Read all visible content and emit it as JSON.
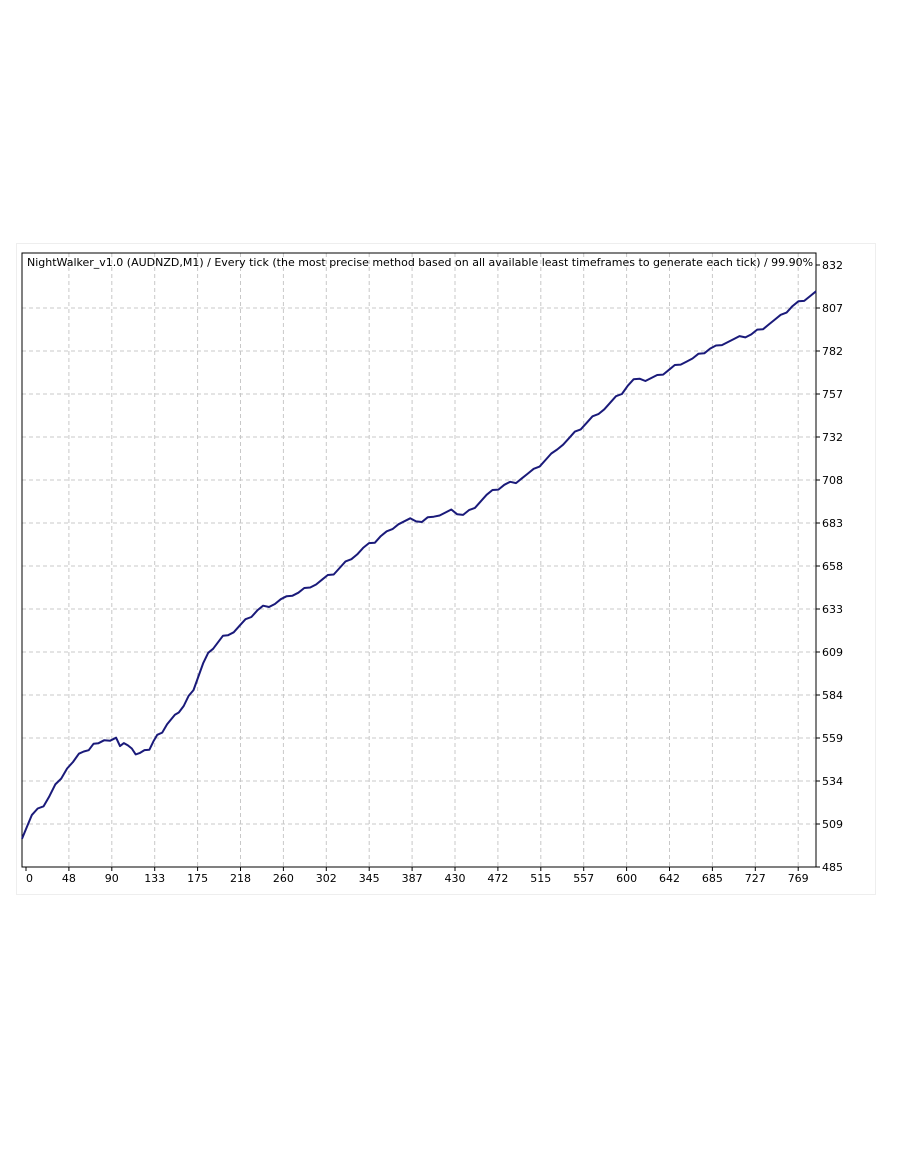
{
  "chart_data": {
    "type": "line",
    "title": "NightWalker_v1.0 (AUDNZD,M1) / Every tick (the most precise method based on all available least timeframes to generate each tick) / 99.90%",
    "xlabel": "",
    "ylabel": "",
    "x_ticks": [
      "0",
      "48",
      "90",
      "133",
      "175",
      "218",
      "260",
      "302",
      "345",
      "387",
      "430",
      "472",
      "515",
      "557",
      "600",
      "642",
      "685",
      "727",
      "769"
    ],
    "y_ticks": [
      "832",
      "807",
      "782",
      "757",
      "732",
      "708",
      "683",
      "658",
      "633",
      "609",
      "584",
      "559",
      "534",
      "509",
      "485"
    ],
    "xlim": [
      0,
      810
    ],
    "ylim": [
      485,
      832
    ],
    "grid": true,
    "series": [
      {
        "color": "#1a1a7a",
        "x": [
          0,
          5,
          10,
          16,
          22,
          28,
          34,
          40,
          46,
          52,
          58,
          63,
          68,
          73,
          78,
          84,
          90,
          96,
          100,
          104,
          108,
          112,
          116,
          120,
          125,
          130,
          134,
          138,
          143,
          148,
          152,
          156,
          160,
          165,
          170,
          175,
          180,
          185,
          190,
          195,
          200,
          205,
          210,
          216,
          222,
          228,
          234,
          240,
          246,
          252,
          258,
          264,
          270,
          276,
          282,
          288,
          294,
          300,
          306,
          312,
          318,
          324,
          330,
          336,
          342,
          348,
          354,
          360,
          366,
          372,
          378,
          384,
          390,
          396,
          402,
          408,
          414,
          420,
          426,
          432,
          438,
          444,
          450,
          456,
          462,
          468,
          474,
          480,
          486,
          492,
          498,
          504,
          510,
          516,
          522,
          528,
          534,
          540,
          546,
          552,
          558,
          564,
          570,
          576,
          582,
          588,
          594,
          600,
          606,
          612,
          618,
          624,
          630,
          636,
          642,
          648,
          654,
          660,
          666,
          672,
          678,
          684,
          690,
          696,
          702,
          708,
          714,
          720,
          726,
          732,
          738,
          744,
          750,
          756,
          762,
          768,
          774,
          780,
          786,
          792,
          798,
          804,
          810
        ],
        "y": [
          502,
          508,
          514,
          517,
          520,
          525,
          531,
          536,
          541,
          544,
          548,
          551,
          551,
          554,
          556,
          557,
          556,
          557,
          554,
          555,
          553,
          553,
          549,
          549,
          550,
          552,
          556,
          559,
          562,
          566,
          568,
          570,
          573,
          576,
          581,
          586,
          593,
          600,
          605,
          609,
          612,
          615,
          617,
          618,
          621,
          624,
          627,
          630,
          632,
          633,
          634,
          636,
          637,
          639,
          640,
          642,
          644,
          645,
          647,
          649,
          651,
          654,
          657,
          660,
          662,
          665,
          667,
          669,
          672,
          674,
          677,
          679,
          680,
          681,
          681,
          680,
          682,
          684,
          684,
          685,
          686,
          685,
          684,
          686,
          689,
          692,
          695,
          697,
          699,
          701,
          702,
          703,
          705,
          707,
          709,
          712,
          715,
          718,
          722,
          724,
          727,
          730,
          733,
          736,
          739,
          742,
          744,
          747,
          750,
          753,
          757,
          760,
          762,
          760,
          761,
          762,
          764,
          766,
          768,
          770,
          771,
          772,
          774,
          776,
          778,
          779,
          781,
          782,
          783,
          784,
          785,
          786,
          788,
          790,
          792,
          794,
          796,
          799,
          802,
          804,
          806,
          808,
          810
        ]
      }
    ]
  },
  "colors": {
    "line": "#1a1a7a",
    "grid": "#c8c8c8",
    "frame": "#000000",
    "background": "#ffffff"
  }
}
